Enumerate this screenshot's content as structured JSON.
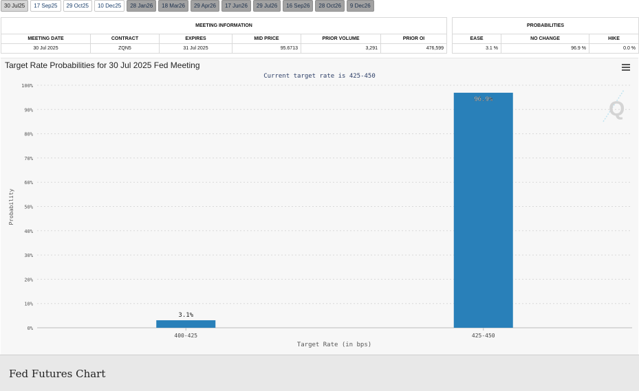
{
  "tabs": [
    {
      "label": "30 Jul25",
      "style": "selected"
    },
    {
      "label": "17 Sep25",
      "style": "light"
    },
    {
      "label": "29 Oct25",
      "style": "light"
    },
    {
      "label": "10 Dec25",
      "style": "light"
    },
    {
      "label": "28 Jan26",
      "style": "dark"
    },
    {
      "label": "18 Mar26",
      "style": "dark"
    },
    {
      "label": "29 Apr26",
      "style": "dark"
    },
    {
      "label": "17 Jun26",
      "style": "dark"
    },
    {
      "label": "29 Jul26",
      "style": "dark"
    },
    {
      "label": "16 Sep26",
      "style": "dark"
    },
    {
      "label": "28 Oct26",
      "style": "dark"
    },
    {
      "label": "9 Dec26",
      "style": "dark"
    }
  ],
  "meeting_info": {
    "header": "MEETING INFORMATION",
    "columns": [
      "MEETING DATE",
      "CONTRACT",
      "EXPIRES",
      "MID PRICE",
      "PRIOR VOLUME",
      "PRIOR OI"
    ],
    "row": {
      "meeting_date": "30 Jul 2025",
      "contract": "ZQN5",
      "expires": "31 Jul 2025",
      "mid_price": "95.6713",
      "prior_volume": "3,291",
      "prior_oi": "476,599"
    }
  },
  "probabilities": {
    "header": "PROBABILITIES",
    "columns": [
      "EASE",
      "NO CHANGE",
      "HIKE"
    ],
    "row": {
      "ease": "3.1 %",
      "no_change": "96.9 %",
      "hike": "0.0 %"
    }
  },
  "chart": {
    "title": "Target Rate Probabilities for 30 Jul 2025 Fed Meeting",
    "subtitle": "Current target rate is 425-450",
    "menu_icon": "hamburger-menu-icon",
    "watermark_icon": "quikstrike-q-logo-icon",
    "bar_color": "#2980b9"
  },
  "chart_data": {
    "type": "bar",
    "categories": [
      "400-425",
      "425-450"
    ],
    "values": [
      3.1,
      96.9
    ],
    "data_labels": [
      "3.1%",
      "96.9%"
    ],
    "xlabel": "Target Rate (in bps)",
    "ylabel": "Probability",
    "ylim": [
      0,
      100
    ],
    "yticks": [
      "0%",
      "10%",
      "20%",
      "30%",
      "40%",
      "50%",
      "60%",
      "70%",
      "80%",
      "90%",
      "100%"
    ],
    "grid": true
  },
  "footer": {
    "title": "Fed Futures Chart"
  }
}
